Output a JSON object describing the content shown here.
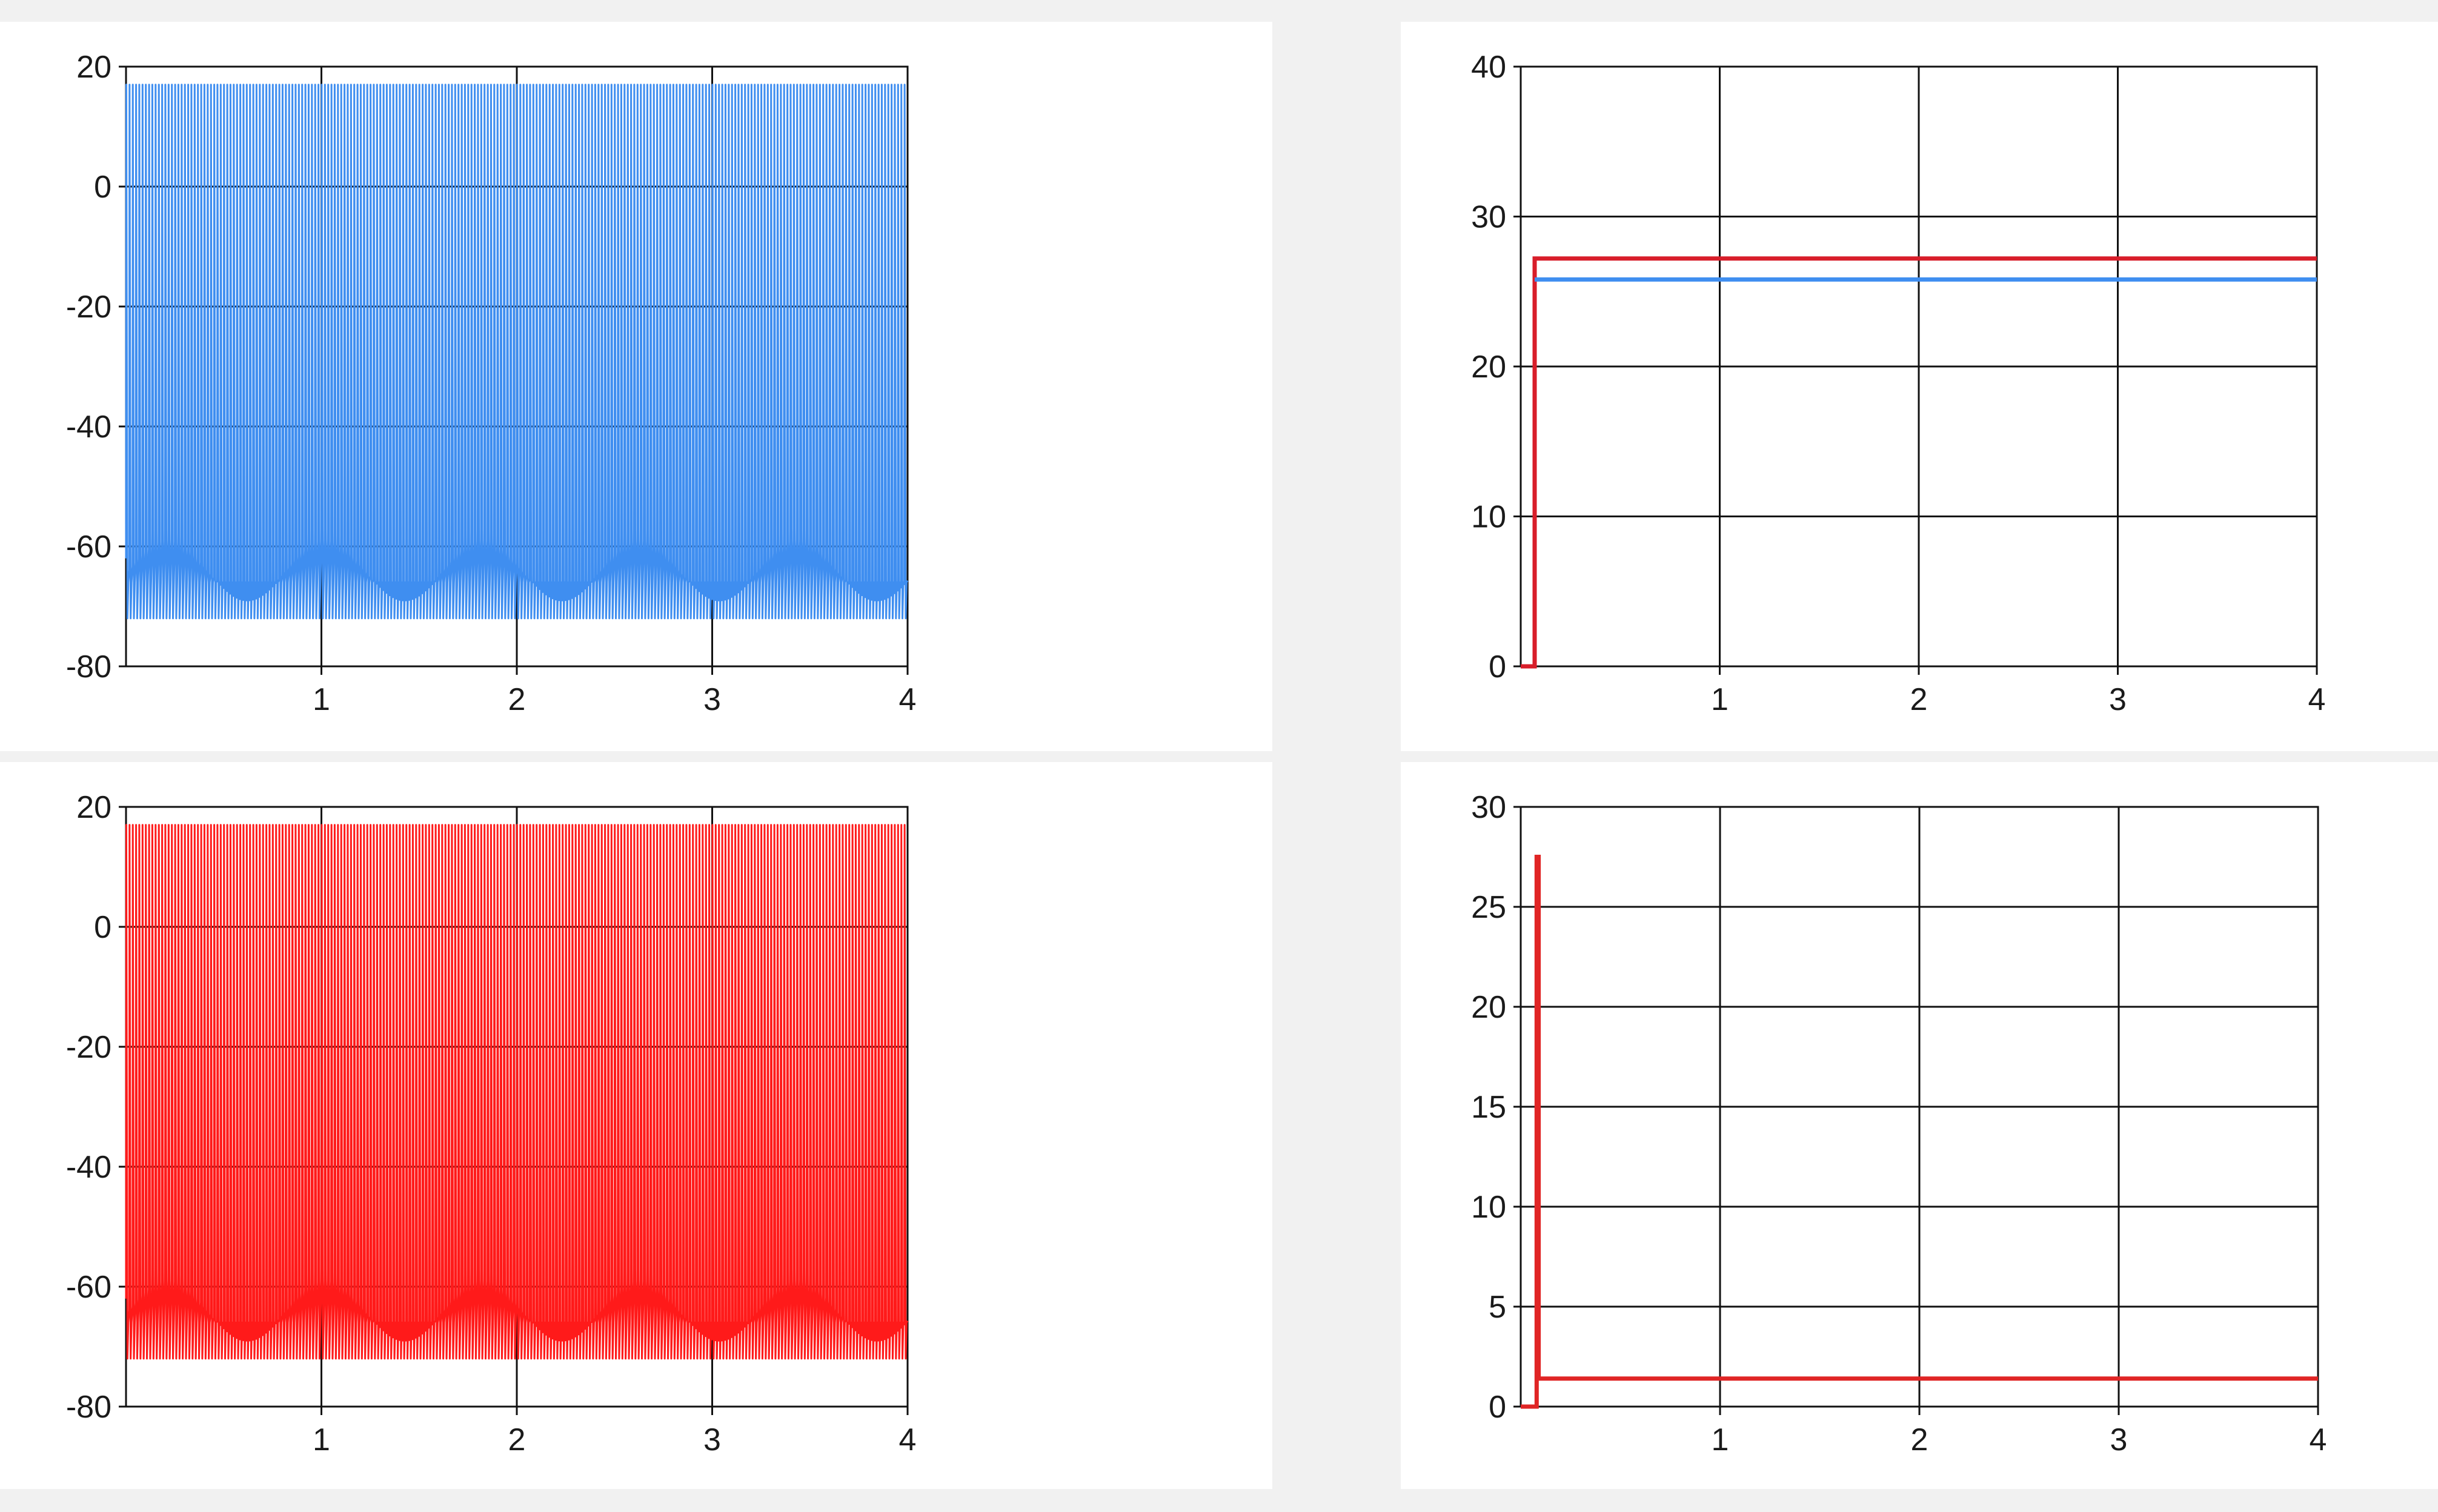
{
  "chart_data": [
    {
      "type": "line",
      "position": "top-left",
      "color": "#3f8ef0",
      "waveform": "repetitive spiking trace",
      "x": [
        0,
        4
      ],
      "series": [
        {
          "values_range": [
            -72,
            17
          ]
        }
      ],
      "xlim": [
        0,
        4
      ],
      "ylim": [
        -80,
        20
      ],
      "xticks": [
        "1",
        "2",
        "3",
        "4"
      ],
      "yticks": [
        "20",
        "0",
        "-20",
        "-40",
        "-60",
        "-80"
      ],
      "ytick_values": [
        20,
        0,
        -20,
        -40,
        -60,
        -80
      ],
      "grid": true
    },
    {
      "type": "line",
      "position": "top-right",
      "xlim": [
        0,
        4
      ],
      "ylim": [
        0,
        40
      ],
      "xticks": [
        "1",
        "2",
        "3",
        "4"
      ],
      "yticks": [
        "40",
        "30",
        "20",
        "10",
        "0"
      ],
      "ytick_values": [
        40,
        30,
        20,
        10,
        0
      ],
      "grid": true,
      "series": [
        {
          "color": "#d81e2a",
          "x": [
            0,
            0.07,
            0.07,
            4
          ],
          "y": [
            0,
            0,
            27.2,
            27.2
          ]
        },
        {
          "color": "#3f8ef0",
          "x": [
            0.07,
            4
          ],
          "y": [
            25.8,
            25.8
          ]
        }
      ]
    },
    {
      "type": "line",
      "position": "bottom-left",
      "color": "#ff1a1a",
      "waveform": "repetitive spiking trace",
      "x": [
        0,
        4
      ],
      "series": [
        {
          "values_range": [
            -72,
            17
          ]
        }
      ],
      "xlim": [
        0,
        4
      ],
      "ylim": [
        -80,
        20
      ],
      "xticks": [
        "1",
        "2",
        "3",
        "4"
      ],
      "yticks": [
        "20",
        "0",
        "-20",
        "-40",
        "-60",
        "-80"
      ],
      "ytick_values": [
        20,
        0,
        -20,
        -40,
        -60,
        -80
      ],
      "grid": true
    },
    {
      "type": "line",
      "position": "bottom-right",
      "xlim": [
        0,
        4
      ],
      "ylim": [
        0,
        30
      ],
      "xticks": [
        "1",
        "2",
        "3",
        "4"
      ],
      "yticks": [
        "30",
        "25",
        "20",
        "15",
        "10",
        "5",
        "0"
      ],
      "ytick_values": [
        30,
        25,
        20,
        15,
        10,
        5,
        0
      ],
      "grid": true,
      "series": [
        {
          "color": "#e02525",
          "x": [
            0,
            0.08,
            0.08,
            0.09,
            0.09,
            4
          ],
          "y": [
            0,
            0,
            27.5,
            27.5,
            1.4,
            1.4
          ]
        }
      ]
    }
  ]
}
